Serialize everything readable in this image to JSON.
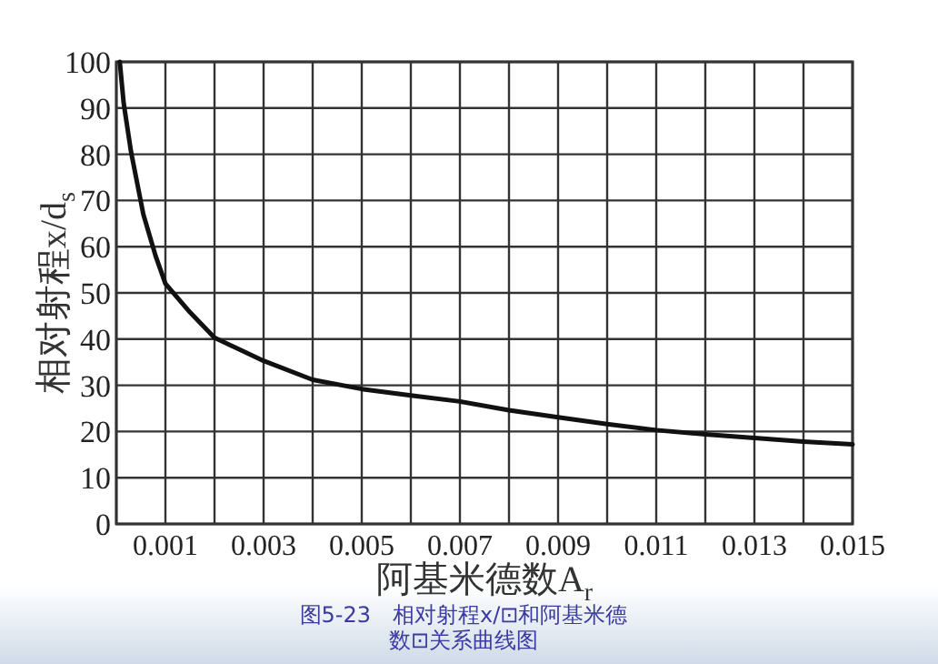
{
  "chart_data": {
    "type": "line",
    "xlabel": "阿基米德数A$_{r}$",
    "ylabel": "相对射程x/d$_{s}$",
    "annotations": [
      "图5-23　相对射程x/⊡和阿基米德数⊡关系曲线图"
    ],
    "x": [
      7e-05,
      0.00015,
      0.0003,
      0.00055,
      0.0008,
      0.001,
      0.0015,
      0.002,
      0.003,
      0.004,
      0.005,
      0.006,
      0.007,
      0.008,
      0.009,
      0.01,
      0.011,
      0.012,
      0.013,
      0.014,
      0.015
    ],
    "series": [
      {
        "color": "#111111",
        "values": [
          100,
          91,
          80.5,
          67,
          58,
          52,
          45.8,
          40.3,
          35.3,
          31.2,
          29.2,
          27.8,
          26.5,
          24.6,
          23.1,
          21.6,
          20.3,
          19.4,
          18.6,
          17.8,
          17.2
        ]
      }
    ],
    "xlim": [
      0,
      0.015
    ],
    "ylim": [
      0,
      100
    ],
    "xticks": [
      {
        "value": 0.0,
        "label": null
      },
      0.001,
      {
        "value": 0.002,
        "label": null
      },
      0.003,
      {
        "value": 0.004,
        "label": null
      },
      0.005,
      {
        "value": 0.006,
        "label": null
      },
      0.007,
      {
        "value": 0.008,
        "label": null
      },
      0.009,
      {
        "value": 0.01,
        "label": null
      },
      0.011,
      {
        "value": 0.012,
        "label": null
      },
      0.013,
      {
        "value": 0.014,
        "label": null
      },
      0.015
    ],
    "yticks": [
      0,
      10,
      20,
      30,
      40,
      50,
      60,
      70,
      80,
      90,
      100
    ],
    "grid": true,
    "marker": "none",
    "line_style": "solid"
  }
}
